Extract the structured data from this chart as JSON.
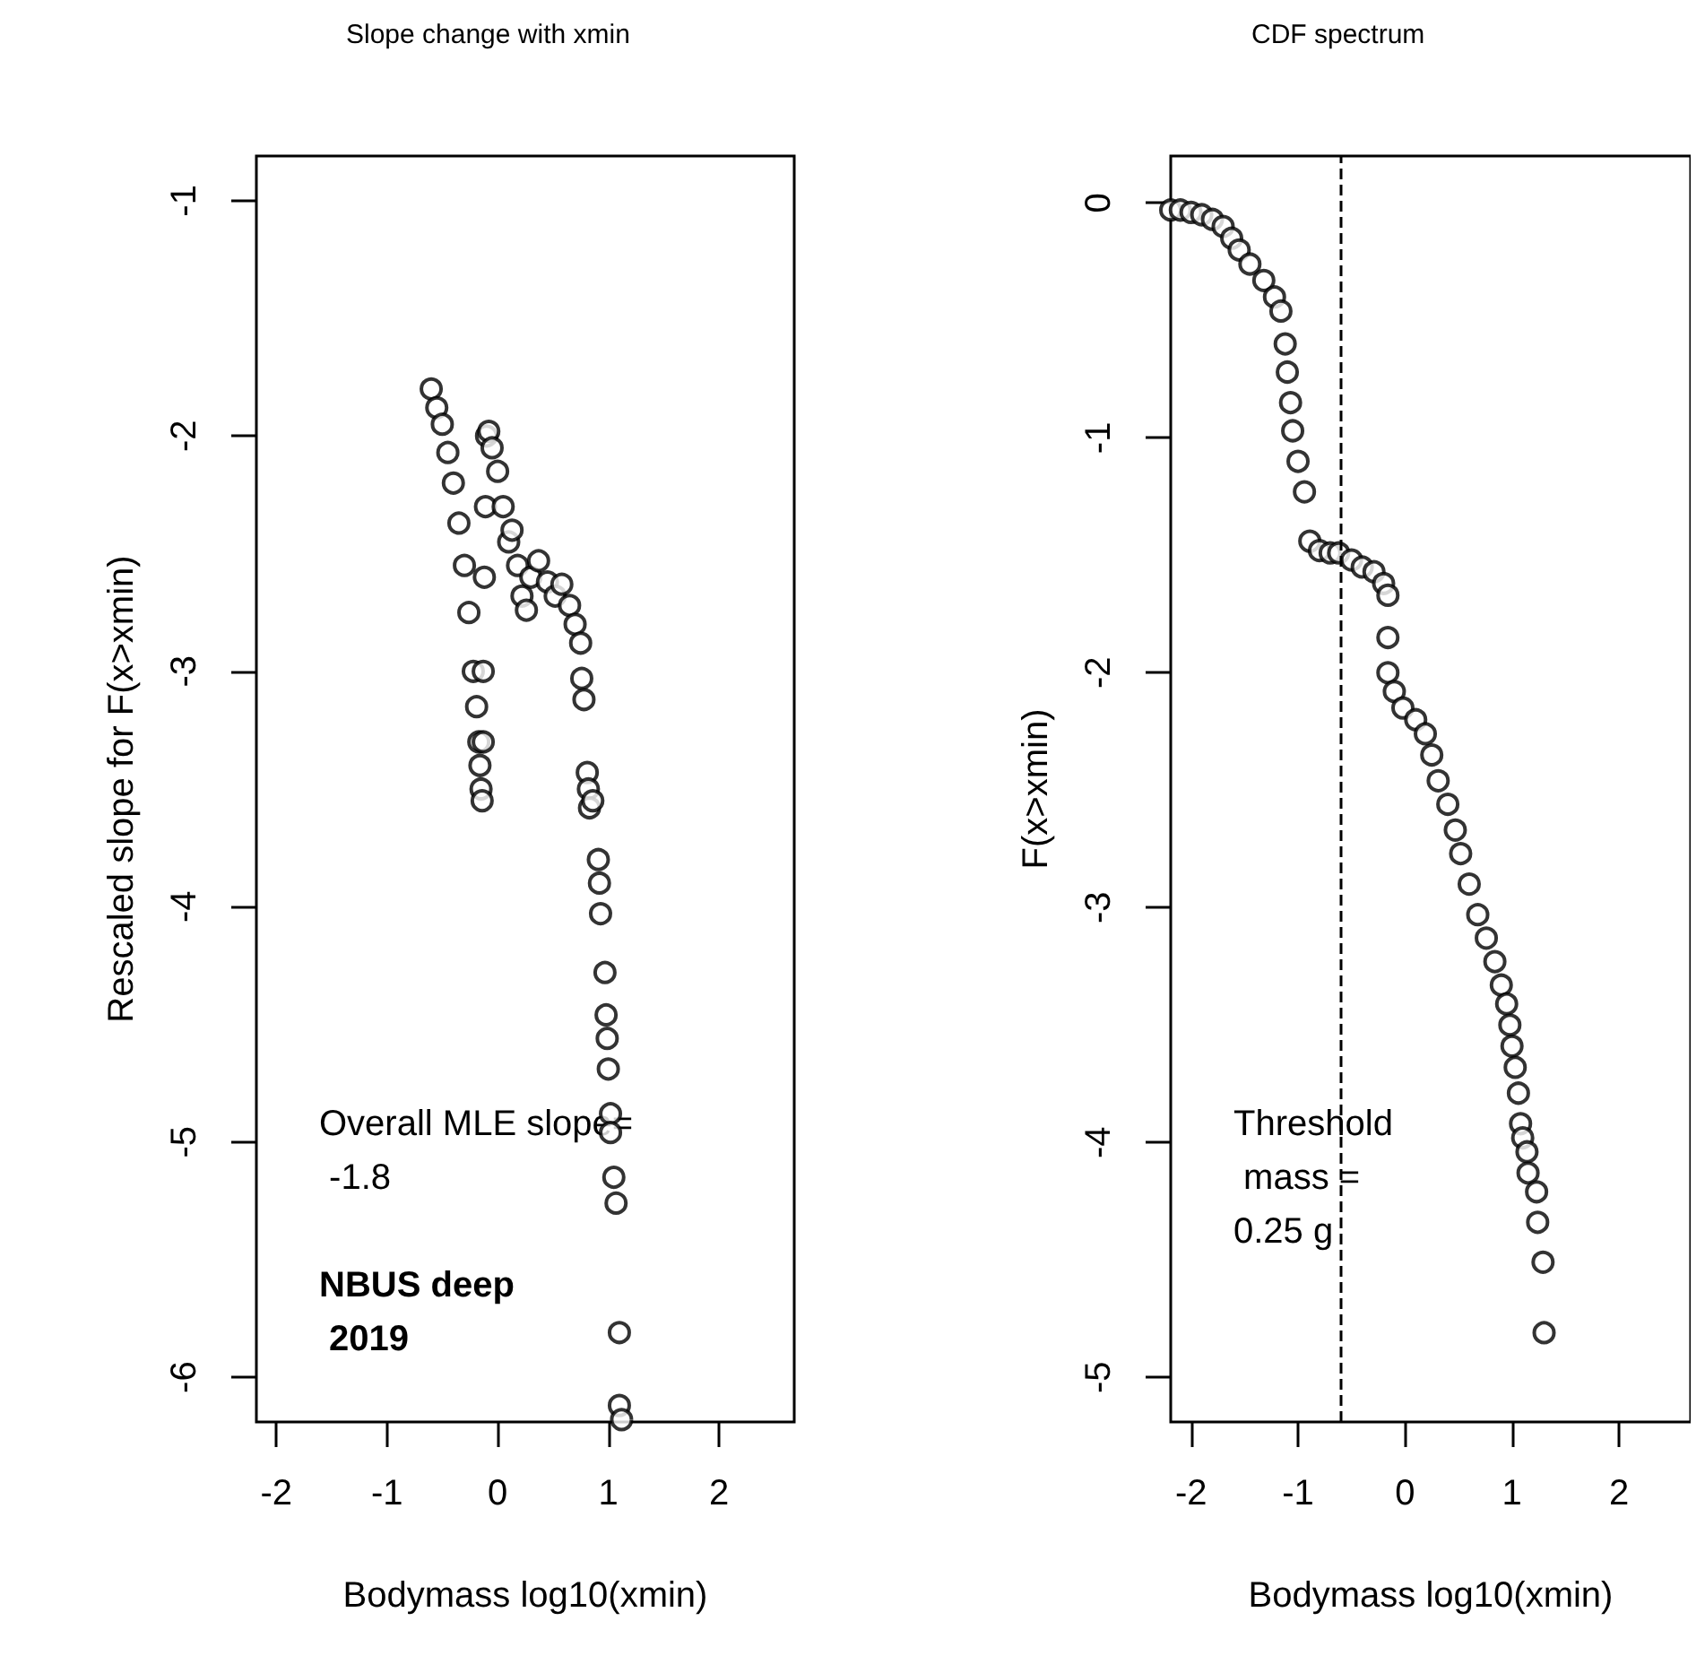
{
  "chart_data": [
    {
      "type": "scatter",
      "title": "Slope change with xmin",
      "xlabel": "Bodymass log10(xmin)",
      "ylabel": "Rescaled slope for F(x>xmin)",
      "marker": "circle",
      "color": "#000000",
      "x": [
        -0.6,
        -0.55,
        -0.5,
        -0.45,
        -0.4,
        -0.35,
        -0.3,
        -0.26,
        -0.22,
        -0.19,
        -0.17,
        -0.16,
        -0.15,
        -0.14,
        -0.13,
        -0.13,
        -0.12,
        -0.11,
        -0.1,
        -0.08,
        -0.05,
        0,
        0.05,
        0.1,
        0.13,
        0.18,
        0.22,
        0.26,
        0.3,
        0.37,
        0.45,
        0.52,
        0.58,
        0.65,
        0.7,
        0.75,
        0.76,
        0.78,
        0.81,
        0.82,
        0.83,
        0.86,
        0.91,
        0.92,
        0.93,
        0.97,
        0.98,
        0.99,
        1.0,
        1.02,
        1.02,
        1.05,
        1.07,
        1.1,
        1.1,
        1.12
      ],
      "values": [
        -1.8,
        -1.88,
        -1.95,
        -2.07,
        -2.2,
        -2.37,
        -2.55,
        -2.75,
        -3.0,
        -3.15,
        -3.3,
        -3.4,
        -3.5,
        -3.55,
        -3.3,
        -3.0,
        -2.6,
        -2.3,
        -2.0,
        -1.98,
        -2.05,
        -2.15,
        -2.3,
        -2.45,
        -2.4,
        -2.55,
        -2.68,
        -2.74,
        -2.6,
        -2.53,
        -2.62,
        -2.68,
        -2.63,
        -2.72,
        -2.8,
        -2.88,
        -3.03,
        -3.12,
        -3.43,
        -3.5,
        -3.58,
        -3.55,
        -3.8,
        -3.9,
        -4.03,
        -4.28,
        -4.46,
        -4.56,
        -4.69,
        -4.88,
        -4.96,
        -5.15,
        -5.26,
        -5.81,
        -6.12,
        -6.18
      ],
      "xlim": [
        -2.18,
        2.68
      ],
      "ylim": [
        -6.19,
        -0.81
      ],
      "xticks": [
        -2,
        -1,
        0,
        1,
        2
      ],
      "yticks": [
        -6,
        -5,
        -4,
        -3,
        -2,
        -1
      ],
      "annotations": [
        "Overall MLE slope=\n -1.8",
        "NBUS deep\n 2019"
      ]
    },
    {
      "type": "scatter",
      "title": "CDF spectrum",
      "xlabel": "Bodymass log10(xmin)",
      "ylabel": "F(x>xmin)",
      "marker": "circle",
      "color": "#000000",
      "x": [
        -2.19,
        -2.1,
        -2.0,
        -1.9,
        -1.8,
        -1.7,
        -1.62,
        -1.55,
        -1.45,
        -1.32,
        -1.22,
        -1.16,
        -1.12,
        -1.1,
        -1.07,
        -1.05,
        -1.0,
        -0.94,
        -0.89,
        -0.8,
        -0.7,
        -0.62,
        -0.5,
        -0.4,
        -0.29,
        -0.2,
        -0.16,
        -0.16,
        -0.16,
        -0.1,
        -0.02,
        0.1,
        0.19,
        0.25,
        0.31,
        0.4,
        0.47,
        0.52,
        0.6,
        0.68,
        0.76,
        0.84,
        0.9,
        0.95,
        0.98,
        1.0,
        1.03,
        1.06,
        1.08,
        1.1,
        1.14,
        1.15,
        1.23,
        1.24,
        1.29,
        1.3
      ],
      "values": [
        -0.03,
        -0.03,
        -0.04,
        -0.05,
        -0.07,
        -0.1,
        -0.15,
        -0.2,
        -0.26,
        -0.33,
        -0.4,
        -0.46,
        -0.6,
        -0.72,
        -0.85,
        -0.97,
        -1.1,
        -1.23,
        -1.44,
        -1.48,
        -1.49,
        -1.49,
        -1.52,
        -1.55,
        -1.57,
        -1.62,
        -1.67,
        -1.85,
        -2.0,
        -2.08,
        -2.15,
        -2.2,
        -2.26,
        -2.35,
        -2.46,
        -2.56,
        -2.67,
        -2.77,
        -2.9,
        -3.03,
        -3.13,
        -3.23,
        -3.33,
        -3.41,
        -3.5,
        -3.59,
        -3.68,
        -3.79,
        -3.92,
        -3.98,
        -4.04,
        -4.13,
        -4.21,
        -4.34,
        -4.51,
        -4.81
      ],
      "xlim": [
        -2.19,
        2.67
      ],
      "ylim": [
        -5.19,
        0.2
      ],
      "xticks": [
        -2,
        -1,
        0,
        1,
        2
      ],
      "yticks": [
        -5,
        -4,
        -3,
        -2,
        -1,
        0
      ],
      "annotations": [
        "Threshold\n mass =\n0.25 g"
      ],
      "ref_lines": [
        {
          "axis": "x",
          "value": -0.6,
          "line_style": "dashed"
        }
      ]
    }
  ]
}
